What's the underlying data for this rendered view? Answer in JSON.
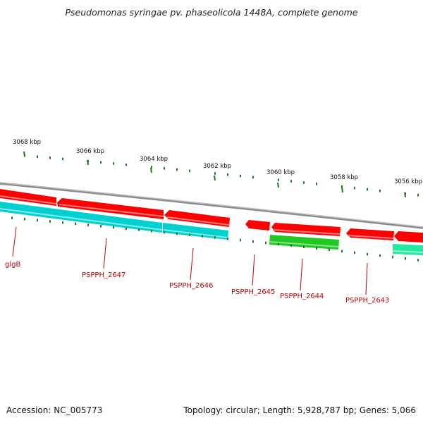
{
  "title": "Pseudomonas syringae pv. phaseolicola 1448A, complete genome",
  "footer": {
    "accession": "Accession: NC_005773",
    "summary": "Topology: circular; Length: 5,928,787 bp; Genes: 5,066"
  },
  "ruler": {
    "labels": [
      "3068 kbp",
      "3066 kbp",
      "3064 kbp",
      "3062 kbp",
      "3060 kbp",
      "3058 kbp",
      "3056 kbp"
    ]
  },
  "genes": [
    {
      "label": "glgB"
    },
    {
      "label": "PSPPH_2647"
    },
    {
      "label": "PSPPH_2646"
    },
    {
      "label": "PSPPH_2645"
    },
    {
      "label": "PSPPH_2644"
    },
    {
      "label": "PSPPH_2643"
    }
  ],
  "colors": {
    "cds_forward": "#ff0000",
    "rna_teal": "#00d5d5",
    "green_feature": "#22cc22",
    "mint_feature": "#22e8a0",
    "backbone": "#808080",
    "ticks": "#1a7a1a",
    "label": "#c00000"
  }
}
